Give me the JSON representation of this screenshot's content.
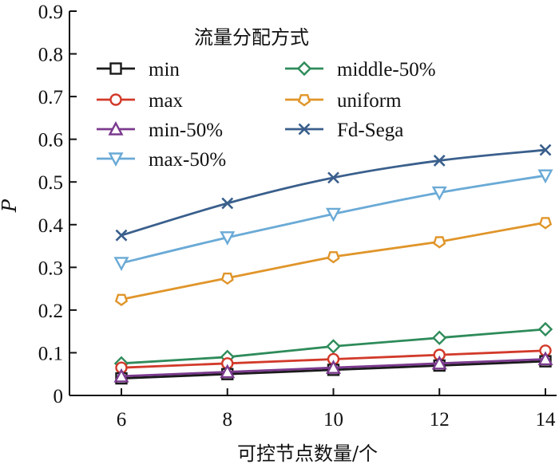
{
  "chart_data": {
    "type": "line",
    "title": "",
    "xlabel": "可控节点数量/个",
    "ylabel": "P",
    "x": [
      6,
      8,
      10,
      12,
      14
    ],
    "xticks": [
      "6",
      "8",
      "10",
      "12",
      "14"
    ],
    "xlim": [
      5.2,
      14.1
    ],
    "yticks": [
      "0",
      "0.1",
      "0.2",
      "0.3",
      "0.4",
      "0.5",
      "0.6",
      "0.7",
      "0.8",
      "0.9"
    ],
    "ylim": [
      0,
      0.9
    ],
    "grid": false,
    "legend": {
      "title": "流量分配方式",
      "placement": "top-left",
      "columns": 2
    },
    "series": [
      {
        "name": "min",
        "marker": "square",
        "color": "#1a1a1a",
        "values": [
          0.04,
          0.05,
          0.06,
          0.07,
          0.08
        ]
      },
      {
        "name": "max",
        "marker": "circle",
        "color": "#d23a2a",
        "values": [
          0.065,
          0.075,
          0.085,
          0.095,
          0.105
        ]
      },
      {
        "name": "min-50%",
        "marker": "triangle-up",
        "color": "#7b3a8e",
        "values": [
          0.045,
          0.055,
          0.065,
          0.075,
          0.085
        ]
      },
      {
        "name": "max-50%",
        "marker": "triangle-down",
        "color": "#6aaad6",
        "values": [
          0.31,
          0.37,
          0.425,
          0.475,
          0.515
        ]
      },
      {
        "name": "middle-50%",
        "marker": "diamond",
        "color": "#2e8b5a",
        "values": [
          0.075,
          0.09,
          0.115,
          0.135,
          0.155
        ]
      },
      {
        "name": "uniform",
        "marker": "pentagon",
        "color": "#e0952a",
        "values": [
          0.225,
          0.275,
          0.325,
          0.36,
          0.405
        ]
      },
      {
        "name": "Fd-Sega",
        "marker": "x",
        "color": "#3a5f8c",
        "values": [
          0.375,
          0.45,
          0.51,
          0.55,
          0.575
        ]
      }
    ]
  }
}
